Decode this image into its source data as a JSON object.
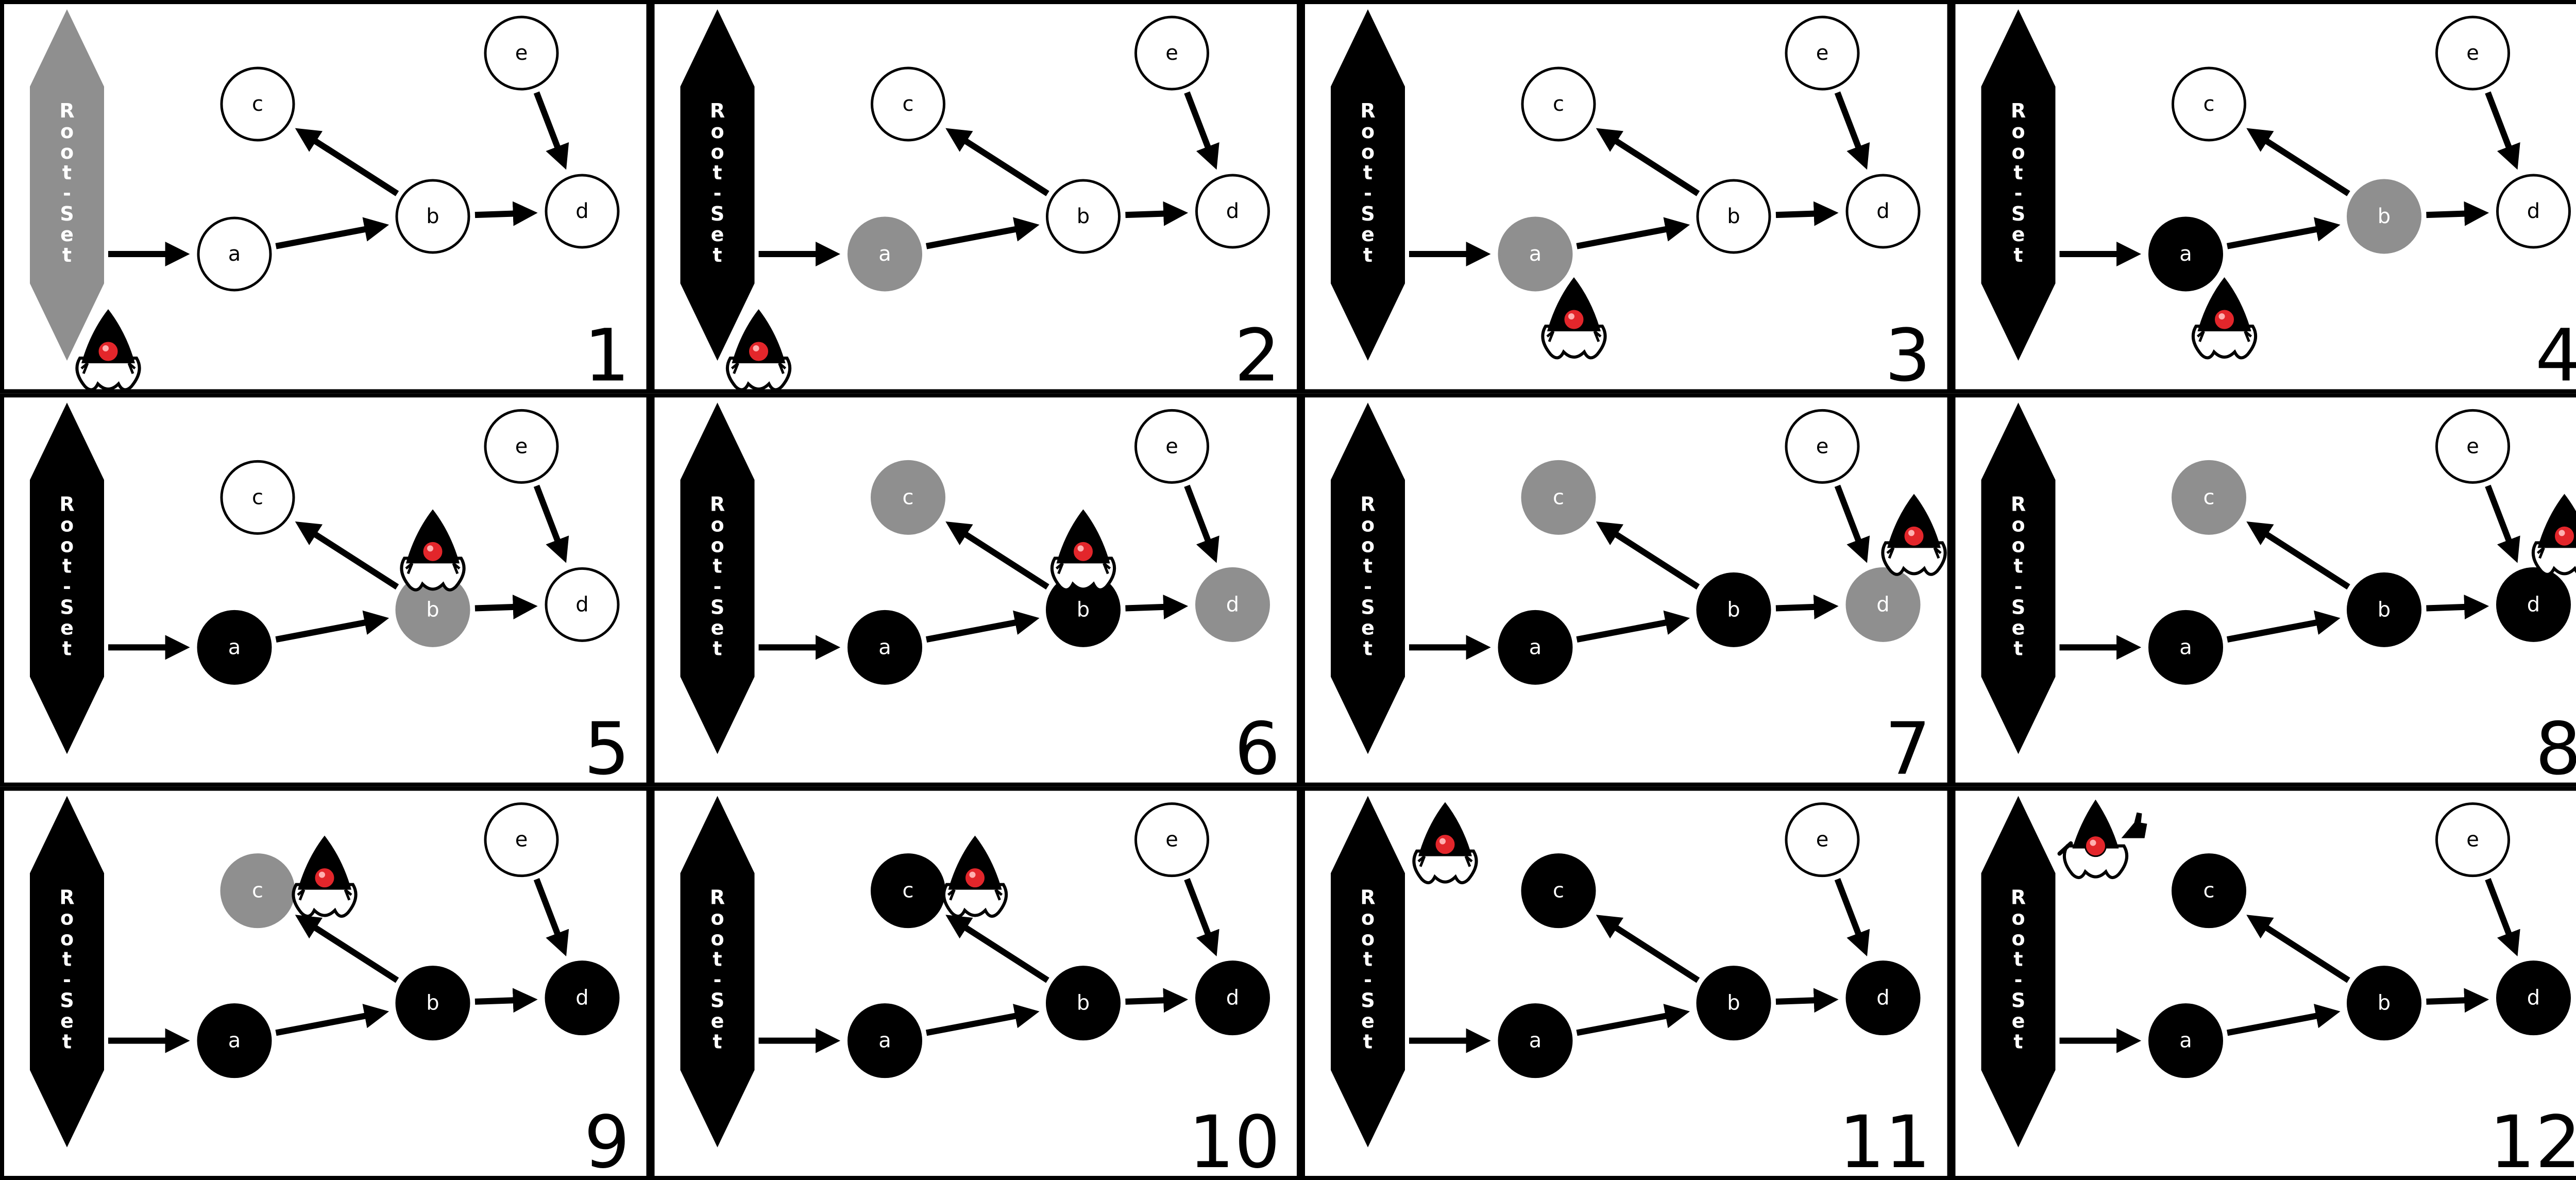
{
  "root_set_label": [
    "R",
    "o",
    "o",
    "t",
    "-",
    "S",
    "e",
    "t"
  ],
  "colors": {
    "white": "#ffffff",
    "gray": "#8f8f8f",
    "black": "#000000",
    "mascot_nose": "#e3262b"
  },
  "edges": [
    [
      "root",
      "a"
    ],
    [
      "a",
      "b"
    ],
    [
      "b",
      "c"
    ],
    [
      "b",
      "d"
    ],
    [
      "e",
      "d"
    ]
  ],
  "node_labels": {
    "a": "a",
    "b": "b",
    "c": "c",
    "d": "d",
    "e": "e"
  },
  "panels": [
    {
      "number": "1",
      "root": "gray",
      "nodes": {
        "a": "white",
        "b": "white",
        "c": "white",
        "d": "white",
        "e": "white"
      },
      "mascot": "root-bottom"
    },
    {
      "number": "2",
      "root": "black",
      "nodes": {
        "a": "gray",
        "b": "white",
        "c": "white",
        "d": "white",
        "e": "white"
      },
      "mascot": "root-bottom"
    },
    {
      "number": "3",
      "root": "black",
      "nodes": {
        "a": "gray",
        "b": "white",
        "c": "white",
        "d": "white",
        "e": "white"
      },
      "mascot": "near-a"
    },
    {
      "number": "4",
      "root": "black",
      "nodes": {
        "a": "black",
        "b": "gray",
        "c": "white",
        "d": "white",
        "e": "white"
      },
      "mascot": "near-a"
    },
    {
      "number": "5",
      "root": "black",
      "nodes": {
        "a": "black",
        "b": "gray",
        "c": "white",
        "d": "white",
        "e": "white"
      },
      "mascot": "near-b"
    },
    {
      "number": "6",
      "root": "black",
      "nodes": {
        "a": "black",
        "b": "black",
        "c": "gray",
        "d": "gray",
        "e": "white"
      },
      "mascot": "near-b"
    },
    {
      "number": "7",
      "root": "black",
      "nodes": {
        "a": "black",
        "b": "black",
        "c": "gray",
        "d": "gray",
        "e": "white"
      },
      "mascot": "near-d"
    },
    {
      "number": "8",
      "root": "black",
      "nodes": {
        "a": "black",
        "b": "black",
        "c": "gray",
        "d": "black",
        "e": "white"
      },
      "mascot": "near-d"
    },
    {
      "number": "9",
      "root": "black",
      "nodes": {
        "a": "black",
        "b": "black",
        "c": "gray",
        "d": "black",
        "e": "white"
      },
      "mascot": "near-c"
    },
    {
      "number": "10",
      "root": "black",
      "nodes": {
        "a": "black",
        "b": "black",
        "c": "black",
        "d": "black",
        "e": "white"
      },
      "mascot": "near-c"
    },
    {
      "number": "11",
      "root": "black",
      "nodes": {
        "a": "black",
        "b": "black",
        "c": "black",
        "d": "black",
        "e": "white"
      },
      "mascot": "root-top"
    },
    {
      "number": "12",
      "root": "black",
      "nodes": {
        "a": "black",
        "b": "black",
        "c": "black",
        "d": "black",
        "e": "white"
      },
      "mascot": "root-top-thumbs"
    }
  ]
}
